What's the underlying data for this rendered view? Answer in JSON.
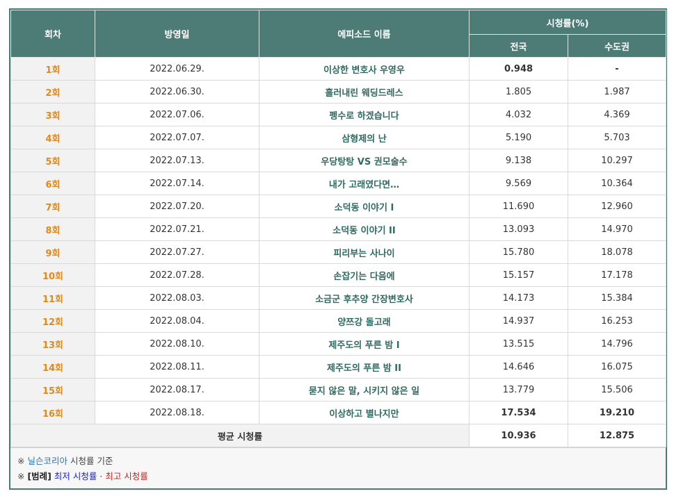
{
  "header": {
    "episode": "회차",
    "date": "방영일",
    "title": "에피소드 이름",
    "rating": "시청률(%)",
    "nationwide": "전국",
    "capital": "수도권"
  },
  "rows": [
    {
      "ep": "1회",
      "date": "2022.06.29.",
      "title": "이상한 변호사 우영우",
      "nation": "0.948",
      "capital": "-"
    },
    {
      "ep": "2회",
      "date": "2022.06.30.",
      "title": "흘러내린 웨딩드레스",
      "nation": "1.805",
      "capital": "1.987"
    },
    {
      "ep": "3회",
      "date": "2022.07.06.",
      "title": "펭수로 하겠습니다",
      "nation": "4.032",
      "capital": "4.369"
    },
    {
      "ep": "4회",
      "date": "2022.07.07.",
      "title": "삼형제의 난",
      "nation": "5.190",
      "capital": "5.703"
    },
    {
      "ep": "5회",
      "date": "2022.07.13.",
      "title": "우당탕탕 VS 권모술수",
      "nation": "9.138",
      "capital": "10.297"
    },
    {
      "ep": "6회",
      "date": "2022.07.14.",
      "title": "내가 고래였다면…",
      "nation": "9.569",
      "capital": "10.364"
    },
    {
      "ep": "7회",
      "date": "2022.07.20.",
      "title": "소덕동 이야기 I",
      "nation": "11.690",
      "capital": "12.960"
    },
    {
      "ep": "8회",
      "date": "2022.07.21.",
      "title": "소덕동 이야기 II",
      "nation": "13.093",
      "capital": "14.970"
    },
    {
      "ep": "9회",
      "date": "2022.07.27.",
      "title": "피리부는 사나이",
      "nation": "15.780",
      "capital": "18.078"
    },
    {
      "ep": "10회",
      "date": "2022.07.28.",
      "title": "손잡기는 다음에",
      "nation": "15.157",
      "capital": "17.178"
    },
    {
      "ep": "11회",
      "date": "2022.08.03.",
      "title": "소금군 후추양 간장변호사",
      "nation": "14.173",
      "capital": "15.384"
    },
    {
      "ep": "12회",
      "date": "2022.08.04.",
      "title": "양쯔강 돌고래",
      "nation": "14.937",
      "capital": "16.253"
    },
    {
      "ep": "13회",
      "date": "2022.08.10.",
      "title": "제주도의 푸른 밤 I",
      "nation": "13.515",
      "capital": "14.796"
    },
    {
      "ep": "14회",
      "date": "2022.08.11.",
      "title": "제주도의 푸른 밤 II",
      "nation": "14.646",
      "capital": "16.075"
    },
    {
      "ep": "15회",
      "date": "2022.08.17.",
      "title": "묻지 않은 말, 시키지 않은 일",
      "nation": "13.779",
      "capital": "15.506"
    },
    {
      "ep": "16회",
      "date": "2022.08.18.",
      "title": "이상하고 별나지만",
      "nation": "17.534",
      "capital": "19.210"
    }
  ],
  "average": {
    "label": "평균 시청률",
    "nation": "10.936",
    "capital": "12.875"
  },
  "notes": {
    "mark": "※",
    "source_name": "닐슨코리아",
    "source_suffix": "시청률 기준",
    "legend_label": "[범례]",
    "lowest": "최저 시청률",
    "sep": "·",
    "highest": "최고 시청률"
  },
  "colors": {
    "header_bg": "#4d7c77",
    "episode_text": "#e28a19",
    "title_text": "#2f6a62",
    "lowest": "#1b22d6",
    "highest": "#d51d1d"
  }
}
